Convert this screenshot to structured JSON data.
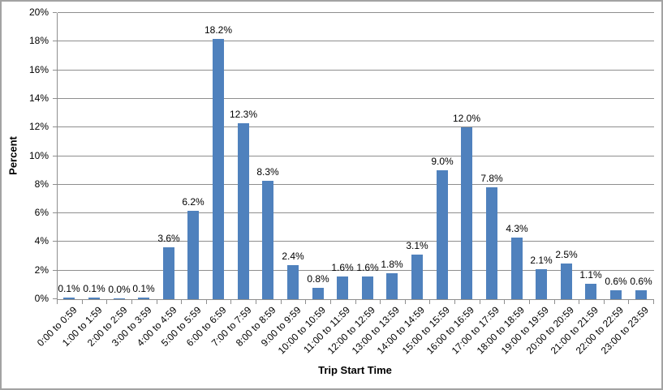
{
  "chart_data": {
    "type": "bar",
    "title": "",
    "xlabel": "Trip Start Time",
    "ylabel": "Percent",
    "categories": [
      "0:00 to 0:59",
      "1:00 to 1:59",
      "2:00 to 2:59",
      "3:00 to 3:59",
      "4:00 to 4:59",
      "5:00 to 5:59",
      "6:00 to 6:59",
      "7:00 to 7:59",
      "8:00 to 8:59",
      "9:00 to 9:59",
      "10:00 to 10:59",
      "11:00 to 11:59",
      "12:00 to 12:59",
      "13:00 to 13:59",
      "14:00 to 14:59",
      "15:00 to 15:59",
      "16:00 to 16:59",
      "17:00 to 17:59",
      "18:00 to 18:59",
      "19:00 to 19:59",
      "20:00 to 20:59",
      "21:00 to 21:59",
      "22:00 to 22:59",
      "23:00 to 23:59"
    ],
    "values": [
      0.1,
      0.1,
      0.0,
      0.1,
      3.6,
      6.2,
      18.2,
      12.3,
      8.3,
      2.4,
      0.8,
      1.6,
      1.6,
      1.8,
      3.1,
      9.0,
      12.0,
      7.8,
      4.3,
      2.1,
      2.5,
      1.1,
      0.6,
      0.6
    ],
    "data_labels": [
      "0.1%",
      "0.1%",
      "0.0%",
      "0.1%",
      "3.6%",
      "6.2%",
      "18.2%",
      "12.3%",
      "8.3%",
      "2.4%",
      "0.8%",
      "1.6%",
      "1.6%",
      "1.8%",
      "3.1%",
      "9.0%",
      "12.0%",
      "7.8%",
      "4.3%",
      "2.1%",
      "2.5%",
      "1.1%",
      "0.6%",
      "0.6%"
    ],
    "y_ticks": [
      "0%",
      "2%",
      "4%",
      "6%",
      "8%",
      "10%",
      "12%",
      "14%",
      "16%",
      "18%",
      "20%"
    ],
    "ylim": [
      0,
      20
    ],
    "grid": true,
    "legend": false,
    "bar_color": "#4f81bd",
    "gridline_color": "#8e8e8e",
    "axis_color": "#8e8e8e",
    "text_color": "#000000",
    "border_color": "#a3a3a3"
  }
}
